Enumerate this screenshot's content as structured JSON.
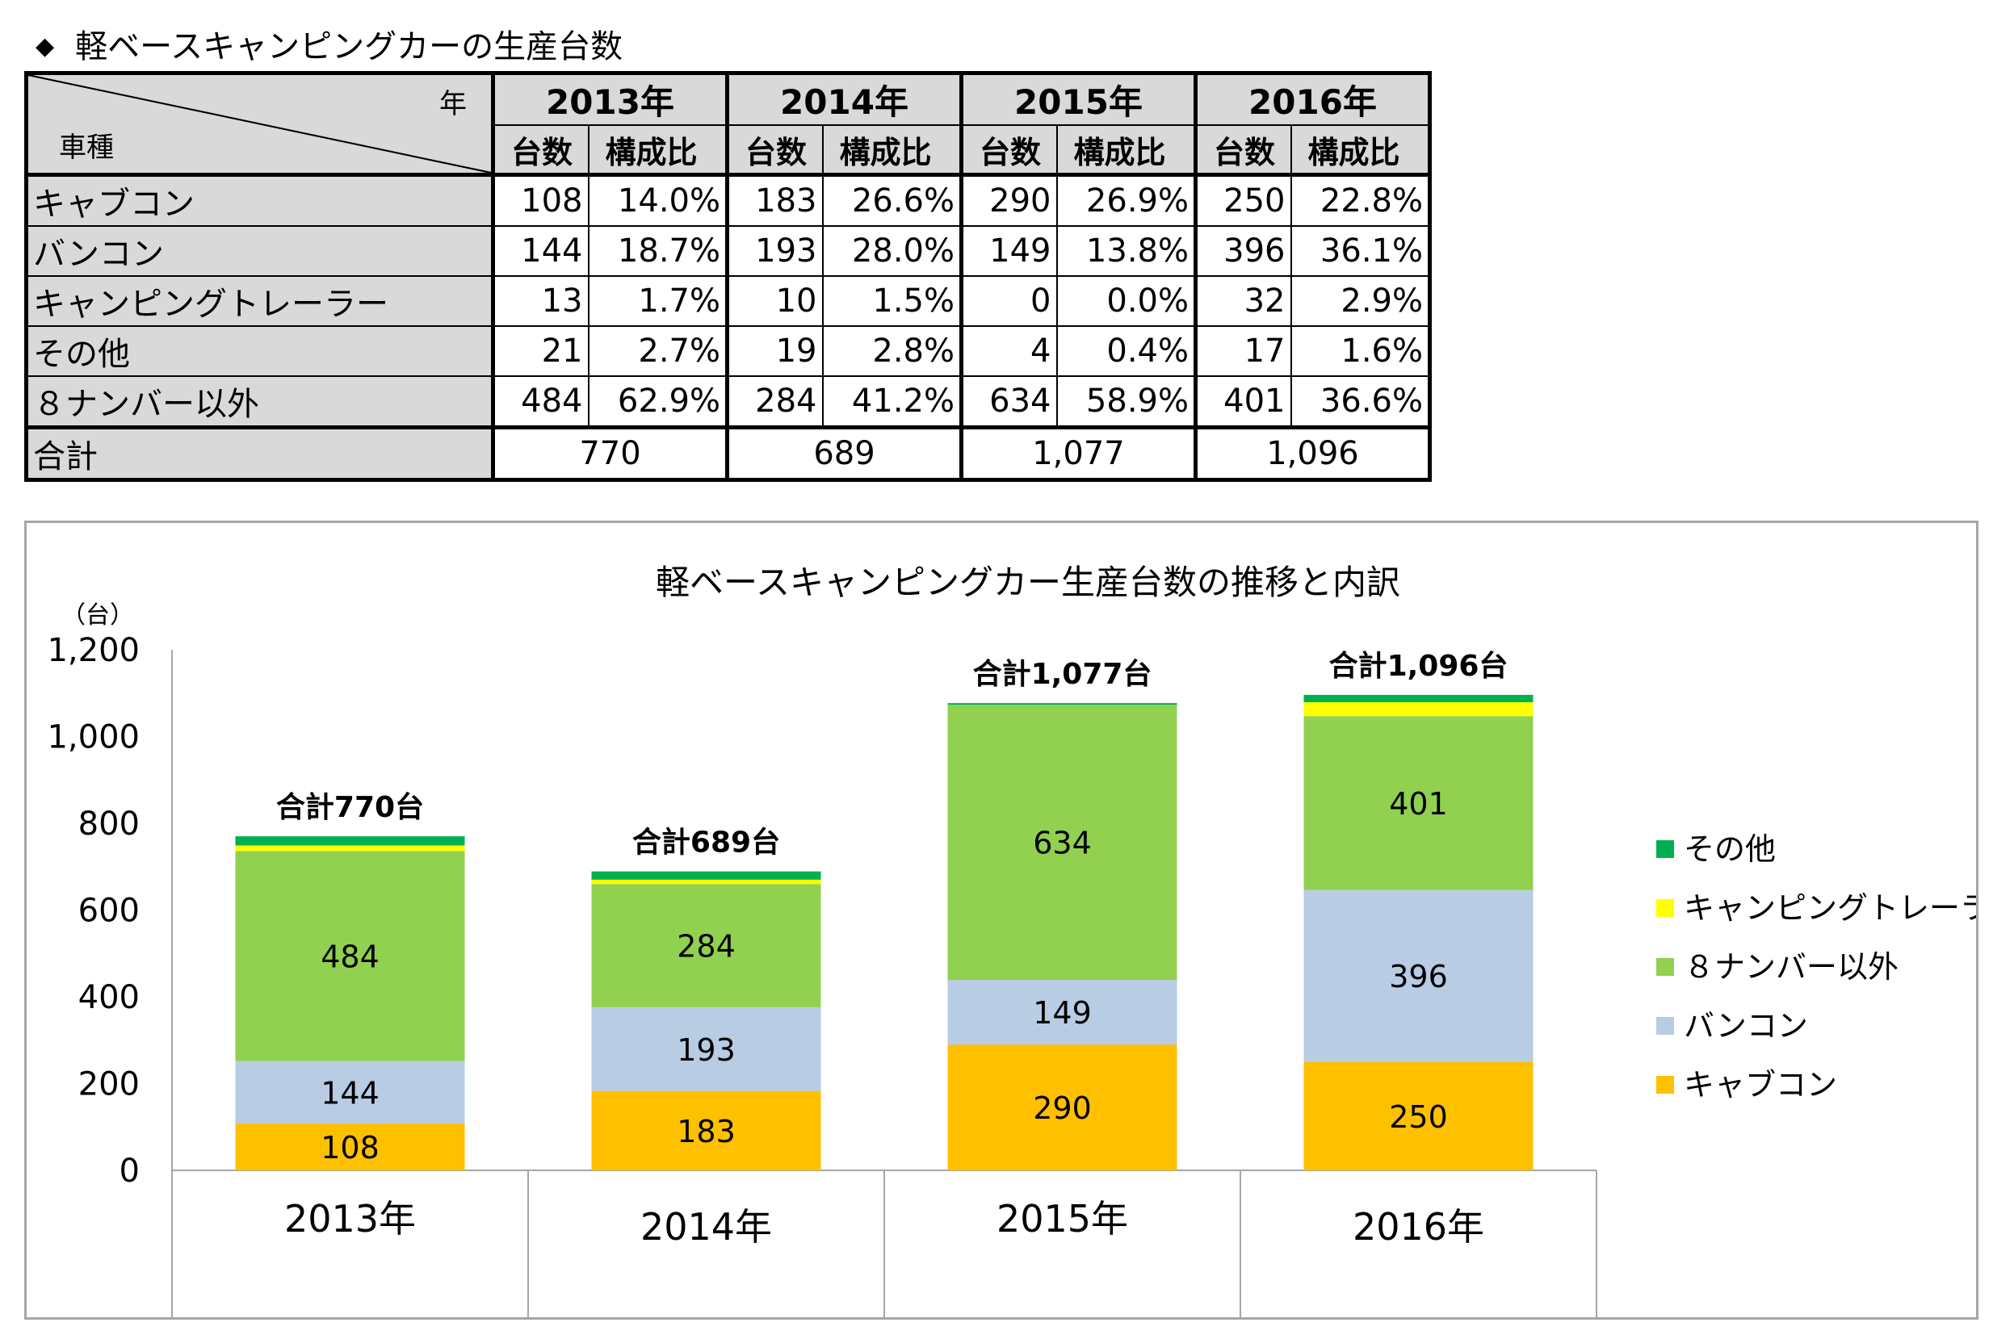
{
  "heading": {
    "bullet": "◆",
    "text": "軽ベースキャンピングカーの生産台数"
  },
  "table": {
    "corner_year": "年",
    "corner_type": "車種",
    "years": [
      "2013年",
      "2014年",
      "2015年",
      "2016年"
    ],
    "sub_headers": {
      "count": "台数",
      "ratio": "構成比"
    },
    "rows": [
      {
        "label": "キャブコン",
        "values": [
          [
            "108",
            "14.0%"
          ],
          [
            "183",
            "26.6%"
          ],
          [
            "290",
            "26.9%"
          ],
          [
            "250",
            "22.8%"
          ]
        ]
      },
      {
        "label": "バンコン",
        "values": [
          [
            "144",
            "18.7%"
          ],
          [
            "193",
            "28.0%"
          ],
          [
            "149",
            "13.8%"
          ],
          [
            "396",
            "36.1%"
          ]
        ]
      },
      {
        "label": "キャンピングトレーラー",
        "values": [
          [
            "13",
            "1.7%"
          ],
          [
            "10",
            "1.5%"
          ],
          [
            "0",
            "0.0%"
          ],
          [
            "32",
            "2.9%"
          ]
        ]
      },
      {
        "label": "その他",
        "values": [
          [
            "21",
            "2.7%"
          ],
          [
            "19",
            "2.8%"
          ],
          [
            "4",
            "0.4%"
          ],
          [
            "17",
            "1.6%"
          ]
        ]
      },
      {
        "label": "８ナンバー以外",
        "values": [
          [
            "484",
            "62.9%"
          ],
          [
            "284",
            "41.2%"
          ],
          [
            "634",
            "58.9%"
          ],
          [
            "401",
            "36.6%"
          ]
        ]
      }
    ],
    "total_label": "合計",
    "totals": [
      "770",
      "689",
      "1,077",
      "1,096"
    ]
  },
  "chart_data": {
    "type": "bar",
    "stacked": true,
    "title": "軽ベースキャンピングカー生産台数の推移と内訳",
    "ylabel": "（台）",
    "xlabel": "",
    "ylim": [
      0,
      1200
    ],
    "yticks": [
      0,
      200,
      400,
      600,
      800,
      1000,
      1200
    ],
    "ytick_labels": [
      "0",
      "200",
      "400",
      "600",
      "800",
      "1,000",
      "1,200"
    ],
    "categories": [
      "2013年",
      "2014年",
      "2015年",
      "2016年"
    ],
    "series": [
      {
        "name": "キャブコン",
        "color": "#ffc000",
        "values": [
          108,
          183,
          290,
          250
        ],
        "show_labels": true
      },
      {
        "name": "バンコン",
        "color": "#b8cce4",
        "values": [
          144,
          193,
          149,
          396
        ],
        "show_labels": true
      },
      {
        "name": "８ナンバー以外",
        "color": "#92d050",
        "values": [
          484,
          284,
          634,
          401
        ],
        "show_labels": true
      },
      {
        "name": "キャンピングトレーラー",
        "color": "#ffff00",
        "values": [
          13,
          10,
          0,
          32
        ],
        "show_labels": false
      },
      {
        "name": "その他",
        "color": "#00b050",
        "values": [
          21,
          19,
          4,
          17
        ],
        "show_labels": false
      }
    ],
    "totals": [
      770,
      689,
      1077,
      1096
    ],
    "total_labels": [
      "合計770台",
      "合計689台",
      "合計1,077台",
      "合計1,096台"
    ],
    "legend_order": [
      "その他",
      "キャンピングトレーラー",
      "８ナンバー以外",
      "バンコン",
      "キャブコン"
    ],
    "legend_position": "right",
    "grid": false
  }
}
